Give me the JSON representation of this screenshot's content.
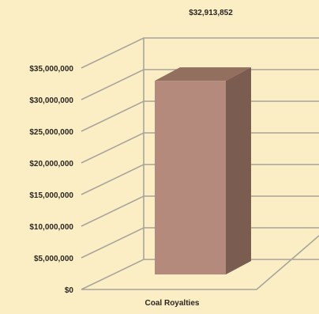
{
  "chart_data": {
    "type": "bar",
    "style": "3d-column",
    "categories": [
      "Coal Royalties"
    ],
    "values": [
      32913852
    ],
    "data_labels": [
      "$32,913,852"
    ],
    "title": "",
    "xlabel": "",
    "ylabel": "",
    "ylim": [
      0,
      35000000
    ],
    "yticks": [
      0,
      5000000,
      10000000,
      15000000,
      20000000,
      25000000,
      30000000,
      35000000
    ],
    "ytick_labels": [
      "$0",
      "$5,000,000",
      "$10,000,000",
      "$15,000,000",
      "$20,000,000",
      "$25,000,000",
      "$30,000,000",
      "$35,000,000"
    ],
    "grid": true,
    "legend": "none",
    "colors": {
      "background": "#fbeec5",
      "bar_front": "#b48a7c",
      "bar_side": "#7a5d50",
      "bar_top": "#936f60",
      "gridlines": "#a9a49a"
    }
  }
}
